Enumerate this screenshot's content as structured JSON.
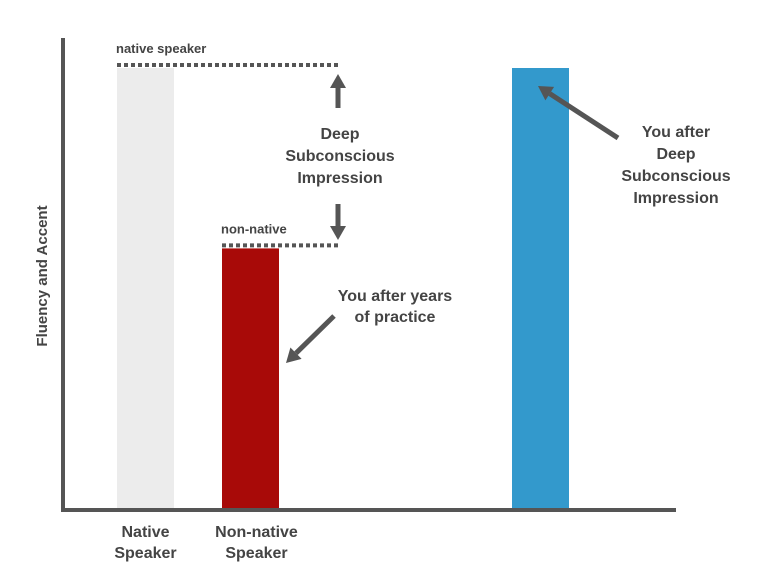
{
  "chart_data": {
    "type": "bar",
    "ylabel": "Fluency and Accent",
    "xlabel": "",
    "title": "",
    "grid": false,
    "ylim": [
      0,
      100
    ],
    "bars": [
      {
        "label_lines": [
          "Native",
          "Speaker"
        ],
        "value": 100,
        "color": "#ececec"
      },
      {
        "label_lines": [
          "Non-native",
          "Speaker"
        ],
        "value": 59,
        "color": "#a80a08"
      },
      {
        "label_lines": [],
        "value": 100,
        "color": "#3399cc"
      }
    ],
    "reference_lines": [
      {
        "label": "native speaker",
        "value": 100
      },
      {
        "label": "non-native",
        "value": 59
      }
    ],
    "annotations": [
      {
        "lines": [
          "Deep",
          "Subconscious",
          "Impression"
        ]
      },
      {
        "lines": [
          "You after years",
          "of practice"
        ]
      },
      {
        "lines": [
          "You after",
          "Deep",
          "Subconscious",
          "Impression"
        ]
      }
    ],
    "colors": {
      "axis": "#555555",
      "text": "#444444",
      "arrow": "#555555"
    }
  }
}
